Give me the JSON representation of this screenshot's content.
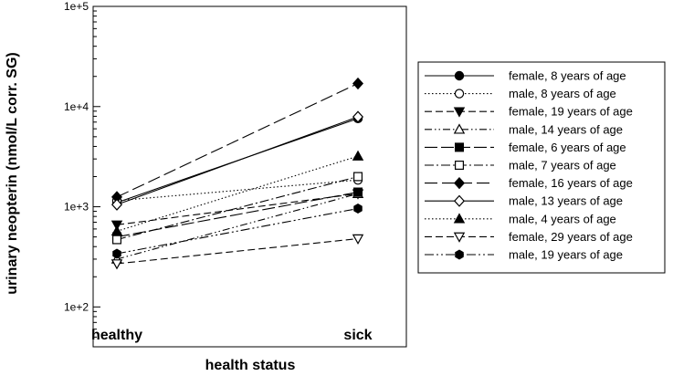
{
  "chart_data": {
    "type": "line",
    "xlabel": "health status",
    "ylabel": "urinary neopterin (nmol/L corr. SG)",
    "categories": [
      "healthy",
      "sick"
    ],
    "yscale": "log",
    "ylim": [
      40,
      100000
    ],
    "yticks": [
      {
        "value": 100,
        "label": "1e+2"
      },
      {
        "value": 1000,
        "label": "1e+3"
      },
      {
        "value": 10000,
        "label": "1e+4"
      },
      {
        "value": 100000,
        "label": "1e+5"
      }
    ],
    "grid": false,
    "legend_position": "right",
    "series": [
      {
        "name": "female, 8 years of age",
        "values": [
          1100,
          7600
        ],
        "dash": "none",
        "marker": "circle",
        "filled": true
      },
      {
        "name": "male, 8 years of age",
        "values": [
          1150,
          1850
        ],
        "dash": "1.5,2.5",
        "marker": "circle",
        "filled": false
      },
      {
        "name": "female, 19 years of age",
        "values": [
          660,
          1350
        ],
        "dash": "8,4",
        "marker": "triangle-down",
        "filled": true
      },
      {
        "name": "male, 14 years of age",
        "values": [
          300,
          1350
        ],
        "dash": "8,3,1.5,3,1.5,3",
        "marker": "triangle-up",
        "filled": false
      },
      {
        "name": "female, 6 years of age",
        "values": [
          500,
          1400
        ],
        "dash": "14,4",
        "marker": "square",
        "filled": true
      },
      {
        "name": "male, 7 years of age",
        "values": [
          470,
          2000
        ],
        "dash": "10,3,2,3",
        "marker": "square",
        "filled": false
      },
      {
        "name": "female, 16 years of age",
        "values": [
          1250,
          17000
        ],
        "dash": "14,5",
        "marker": "diamond",
        "filled": true
      },
      {
        "name": "male, 13 years of age",
        "values": [
          1050,
          7900
        ],
        "dash": "none",
        "marker": "diamond",
        "filled": false
      },
      {
        "name": "male, 4 years of age",
        "values": [
          570,
          3200
        ],
        "dash": "1.5,2.5",
        "marker": "triangle-up",
        "filled": true
      },
      {
        "name": "female, 29 years of age",
        "values": [
          270,
          480
        ],
        "dash": "8,4",
        "marker": "triangle-down",
        "filled": false
      },
      {
        "name": "male, 19 years of age",
        "values": [
          340,
          960
        ],
        "dash": "10,3,2,3,2,3",
        "marker": "hexagon",
        "filled": true
      }
    ]
  }
}
